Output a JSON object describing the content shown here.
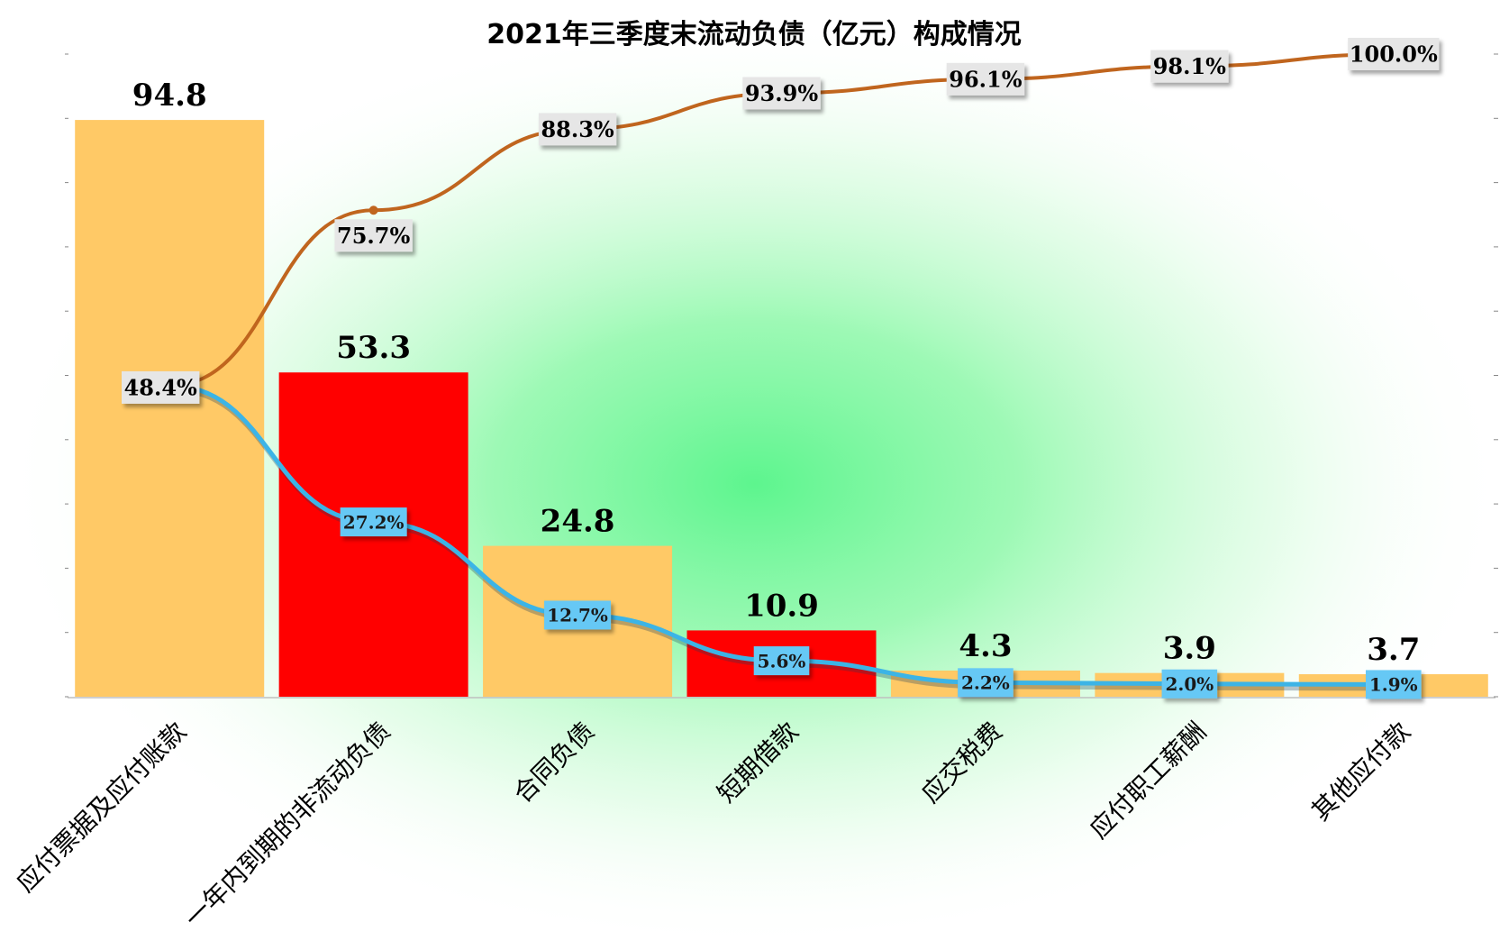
{
  "chart_data": {
    "type": "bar",
    "title": "2021年三季度末流动负债（亿元）构成情况",
    "categories": [
      "应付票据及应付账款",
      "一年内到期的非流动负债",
      "合同负债",
      "短期借款",
      "应交税费",
      "应付职工薪酬",
      "其他应付款"
    ],
    "values": [
      94.8,
      53.3,
      24.8,
      10.9,
      4.3,
      3.9,
      3.7
    ],
    "value_labels": [
      "94.8",
      "53.3",
      "24.8",
      "10.9",
      "4.3",
      "3.9",
      "3.7"
    ],
    "bar_colors": [
      "#FFC966",
      "#FF0000",
      "#FFC966",
      "#FF0000",
      "#FFC966",
      "#FFC966",
      "#FFC966"
    ],
    "series": [
      {
        "type": "line",
        "values": [
          48.4,
          75.7,
          88.3,
          93.9,
          96.1,
          98.1,
          100.0
        ],
        "labels": [
          "48.4%",
          "75.7%",
          "88.3%",
          "93.9%",
          "96.1%",
          "98.1%",
          "100.0%"
        ],
        "color": "#C0651E",
        "label_bg": "#E6E6E6"
      },
      {
        "type": "line",
        "values": [
          48.4,
          27.2,
          12.7,
          5.6,
          2.2,
          2.0,
          1.9
        ],
        "labels": [
          "48.4%",
          "27.2%",
          "12.7%",
          "5.6%",
          "2.2%",
          "2.0%",
          "1.9%"
        ],
        "color": "#3CB4E6",
        "label_bg": "#66C8F5"
      }
    ],
    "ylim": [
      0,
      100
    ],
    "grid": false,
    "background_glow": "#5DF58E"
  }
}
